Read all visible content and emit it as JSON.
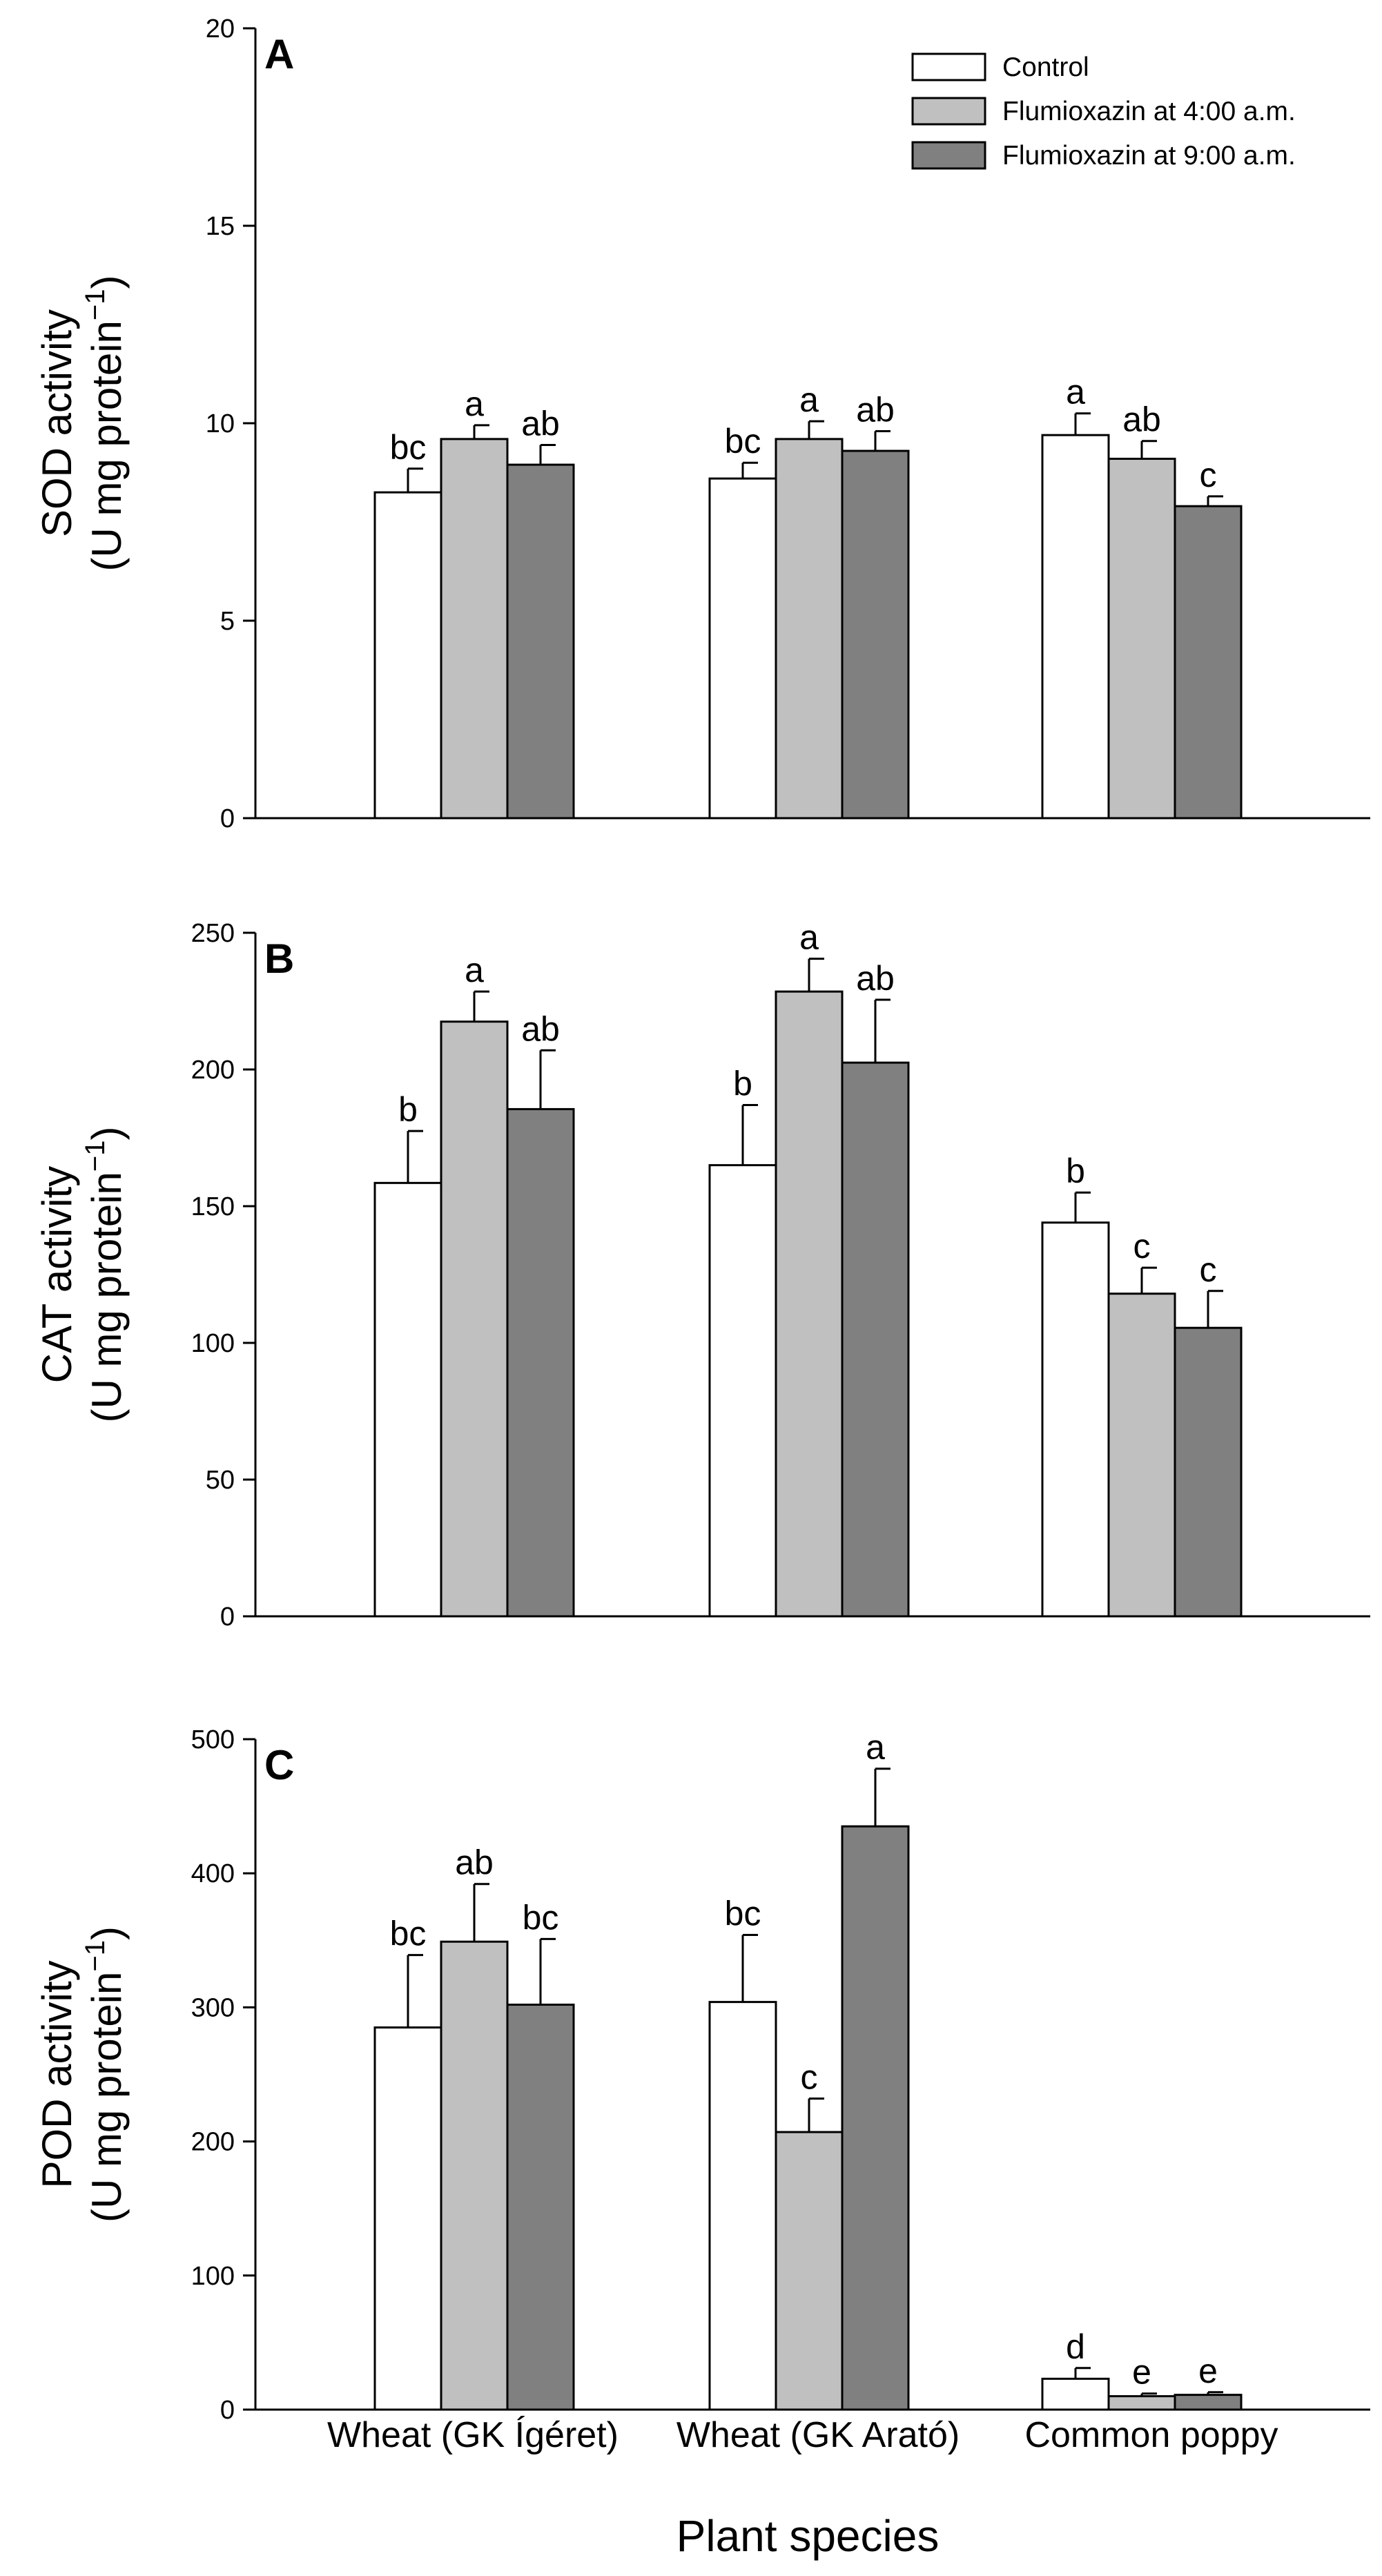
{
  "figure": {
    "xlabel": "Plant species",
    "categories": [
      "Wheat (GK Ígéret)",
      "Wheat (GK Arató)",
      "Common poppy"
    ],
    "legend": [
      {
        "name": "Control",
        "color": "#ffffff"
      },
      {
        "name": "Flumioxazin at 4:00 a.m.",
        "color": "#c0c0c0"
      },
      {
        "name": "Flumioxazin at 9:00 a.m.",
        "color": "#808080"
      }
    ]
  },
  "chart_data": [
    {
      "type": "bar",
      "panel": "A",
      "ylabel_line1": "SOD activity",
      "ylabel_line2_prefix": "(U mg protein",
      "ylabel_superscript": "−1",
      "ylabel_line2_suffix": ")",
      "ylim": [
        0,
        20
      ],
      "yticks": [
        0,
        5,
        10,
        15,
        20
      ],
      "categories": [
        "Wheat (GK Ígéret)",
        "Wheat (GK Arató)",
        "Common poppy"
      ],
      "series": [
        {
          "name": "Control",
          "values": [
            8.25,
            8.6,
            9.7
          ],
          "errors": [
            0.6,
            0.4,
            0.55
          ],
          "letters": [
            "bc",
            "bc",
            "a"
          ]
        },
        {
          "name": "Flumioxazin at 4:00 a.m.",
          "values": [
            9.6,
            9.6,
            9.1
          ],
          "errors": [
            0.35,
            0.45,
            0.45
          ],
          "letters": [
            "a",
            "a",
            "ab"
          ]
        },
        {
          "name": "Flumioxazin at 9:00 a.m.",
          "values": [
            8.95,
            9.3,
            7.9
          ],
          "errors": [
            0.5,
            0.5,
            0.25
          ],
          "letters": [
            "ab",
            "ab",
            "c"
          ]
        }
      ]
    },
    {
      "type": "bar",
      "panel": "B",
      "ylabel_line1": "CAT activity",
      "ylabel_line2_prefix": "(U mg protein",
      "ylabel_superscript": "−1",
      "ylabel_line2_suffix": ")",
      "ylim": [
        0,
        250
      ],
      "yticks": [
        0,
        50,
        100,
        150,
        200,
        250
      ],
      "categories": [
        "Wheat (GK Ígéret)",
        "Wheat (GK Arató)",
        "Common poppy"
      ],
      "series": [
        {
          "name": "Control",
          "values": [
            158.5,
            165,
            144
          ],
          "errors": [
            19,
            22,
            11
          ],
          "letters": [
            "b",
            "b",
            "b"
          ]
        },
        {
          "name": "Flumioxazin at 4:00 a.m.",
          "values": [
            217.5,
            228.5,
            118
          ],
          "errors": [
            11,
            12,
            9.5
          ],
          "letters": [
            "a",
            "a",
            "c"
          ]
        },
        {
          "name": "Flumioxazin at 9:00 a.m.",
          "values": [
            185.5,
            202.5,
            105.5
          ],
          "errors": [
            21.5,
            23,
            13.5
          ],
          "letters": [
            "ab",
            "ab",
            "c"
          ]
        }
      ]
    },
    {
      "type": "bar",
      "panel": "C",
      "ylabel_line1": "POD activity",
      "ylabel_line2_prefix": "(U mg protein",
      "ylabel_superscript": "−1",
      "ylabel_line2_suffix": ")",
      "ylim": [
        0,
        500
      ],
      "yticks": [
        0,
        100,
        200,
        300,
        400,
        500
      ],
      "categories": [
        "Wheat (GK Ígéret)",
        "Wheat (GK Arató)",
        "Common poppy"
      ],
      "series": [
        {
          "name": "Control",
          "values": [
            285,
            304,
            23
          ],
          "errors": [
            54,
            50,
            8
          ],
          "letters": [
            "bc",
            "bc",
            "d"
          ]
        },
        {
          "name": "Flumioxazin at 4:00 a.m.",
          "values": [
            349,
            207,
            10
          ],
          "errors": [
            43,
            25,
            2
          ],
          "letters": [
            "ab",
            "c",
            "e"
          ]
        },
        {
          "name": "Flumioxazin at 9:00 a.m.",
          "values": [
            302,
            435,
            11
          ],
          "errors": [
            49,
            43,
            2
          ],
          "letters": [
            "bc",
            "a",
            "e"
          ]
        }
      ]
    }
  ]
}
